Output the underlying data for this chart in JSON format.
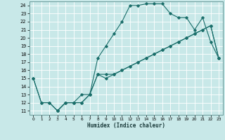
{
  "xlabel": "Humidex (Indice chaleur)",
  "background_color": "#c8e8e8",
  "grid_color": "#ffffff",
  "line_color": "#1a6e6a",
  "xlim": [
    -0.5,
    23.5
  ],
  "ylim": [
    10.5,
    24.5
  ],
  "xticks": [
    0,
    1,
    2,
    3,
    4,
    5,
    6,
    7,
    8,
    9,
    10,
    11,
    12,
    13,
    14,
    15,
    16,
    17,
    18,
    19,
    20,
    21,
    22,
    23
  ],
  "yticks": [
    11,
    12,
    13,
    14,
    15,
    16,
    17,
    18,
    19,
    20,
    21,
    22,
    23,
    24
  ],
  "series1": [
    [
      0,
      15
    ],
    [
      1,
      12
    ],
    [
      2,
      12
    ],
    [
      3,
      11
    ],
    [
      4,
      12
    ],
    [
      5,
      12
    ],
    [
      6,
      13
    ],
    [
      7,
      13
    ],
    [
      8,
      17.5
    ],
    [
      9,
      19
    ],
    [
      10,
      20.5
    ],
    [
      11,
      22
    ],
    [
      12,
      24
    ],
    [
      13,
      24
    ],
    [
      14,
      24.2
    ],
    [
      15,
      24.2
    ],
    [
      16,
      24.2
    ],
    [
      17,
      23
    ],
    [
      18,
      22.5
    ],
    [
      19,
      22.5
    ],
    [
      20,
      21
    ],
    [
      21,
      22.5
    ],
    [
      22,
      19.5
    ],
    [
      23,
      17.5
    ]
  ],
  "series2": [
    [
      0,
      15
    ],
    [
      1,
      12
    ],
    [
      2,
      12
    ],
    [
      3,
      11
    ],
    [
      4,
      12
    ],
    [
      5,
      12
    ],
    [
      6,
      12
    ],
    [
      7,
      13
    ],
    [
      8,
      15.5
    ],
    [
      9,
      15.5
    ],
    [
      10,
      15.5
    ],
    [
      11,
      16
    ],
    [
      12,
      16.5
    ],
    [
      13,
      17
    ],
    [
      14,
      17.5
    ],
    [
      15,
      18
    ],
    [
      16,
      18.5
    ],
    [
      17,
      19
    ],
    [
      18,
      19.5
    ],
    [
      19,
      20
    ],
    [
      20,
      20.5
    ],
    [
      21,
      21
    ],
    [
      22,
      21.5
    ],
    [
      23,
      17.5
    ]
  ],
  "series3": [
    [
      3,
      11
    ],
    [
      4,
      12
    ],
    [
      5,
      12
    ],
    [
      6,
      12
    ],
    [
      7,
      13
    ],
    [
      8,
      15.5
    ],
    [
      9,
      15
    ],
    [
      10,
      15.5
    ],
    [
      11,
      16
    ],
    [
      12,
      16.5
    ],
    [
      13,
      17
    ],
    [
      14,
      17.5
    ],
    [
      15,
      18
    ],
    [
      16,
      18.5
    ],
    [
      17,
      19
    ],
    [
      18,
      19.5
    ],
    [
      19,
      20
    ],
    [
      20,
      20.5
    ],
    [
      21,
      21
    ],
    [
      22,
      21.5
    ],
    [
      23,
      17.5
    ]
  ]
}
